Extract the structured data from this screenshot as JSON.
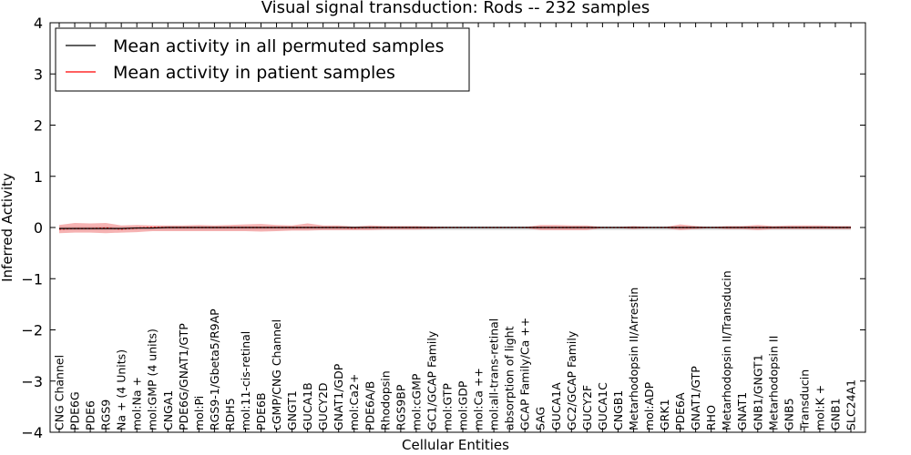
{
  "chart_data": {
    "type": "line",
    "title": "Visual signal transduction: Rods -- 232 samples",
    "xlabel": "Cellular Entities",
    "ylabel": "Inferred Activity",
    "ylim": [
      -4,
      4
    ],
    "yticks": [
      -4,
      -3,
      -2,
      -1,
      0,
      1,
      2,
      3,
      4
    ],
    "ytick_labels": [
      "−4",
      "−3",
      "−2",
      "−1",
      "0",
      "1",
      "2",
      "3",
      "4"
    ],
    "grid": false,
    "legend_position": "top-left",
    "categories": [
      "CNG Channel",
      "PDE6G",
      "PDE6",
      "RGS9",
      "Na + (4 Units)",
      "mol:Na +",
      "mol:GMP (4 units)",
      "CNGA1",
      "PDE6G/GNAT1/GTP",
      "mol:Pi",
      "RGS9-1/Gbeta5/R9AP",
      "RDH5",
      "mol:11-cis-retinal",
      "PDE6B",
      "cGMP/CNG Channel",
      "GNGT1",
      "GUCA1B",
      "GUCY2D",
      "GNAT1/GDP",
      "mol:Ca2+",
      "PDE6A/B",
      "Rhodopsin",
      "RGS9BP",
      "mol:cGMP",
      "GC1/GCAP Family",
      "mol:GTP",
      "mol:GDP",
      "mol:Ca ++",
      "mol:all-trans-retinal",
      "absorption of light",
      "GCAP Family/Ca ++",
      "SAG",
      "GUCA1A",
      "GC2/GCAP Family",
      "GUCY2F",
      "GUCA1C",
      "CNGB1",
      "Metarhodopsin II/Arrestin",
      "mol:ADP",
      "GRK1",
      "PDE6A",
      "GNAT1/GTP",
      "RHO",
      "Metarhodopsin II/Transducin",
      "GNAT1",
      "GNB1/GNGT1",
      "Metarhodopsin II",
      "GNB5",
      "Transducin",
      "mol:K +",
      "GNB1",
      "SLC24A1"
    ],
    "series": [
      {
        "name": "Mean activity in all permuted samples",
        "color": "#000000",
        "values": [
          -0.02,
          -0.02,
          -0.02,
          -0.02,
          -0.02,
          -0.01,
          -0.01,
          0,
          0,
          0,
          0,
          0,
          0,
          0,
          0,
          0,
          0,
          0,
          0,
          0,
          0,
          0,
          0,
          0,
          0,
          0,
          0,
          0,
          0,
          0,
          0,
          0,
          0,
          0,
          0,
          0,
          0,
          0,
          0,
          0,
          0,
          0,
          0,
          0,
          0,
          0,
          0,
          0,
          0,
          0,
          0,
          0
        ],
        "band_upper": [
          0.02,
          0.02,
          0.02,
          0.02,
          0.01,
          0.02,
          0.02,
          0.02,
          0.02,
          0.02,
          0.02,
          0.02,
          0.02,
          0.02,
          0.02,
          0.02,
          0.02,
          0.02,
          0.02,
          0.02,
          0.02,
          0.02,
          0.02,
          0.02,
          0.02,
          0.02,
          0.02,
          0.02,
          0.02,
          0.02,
          0.02,
          0.02,
          0.02,
          0.02,
          0.02,
          0.02,
          0.02,
          0.02,
          0.02,
          0.02,
          0.02,
          0.02,
          0.02,
          0.02,
          0.02,
          0.02,
          0.02,
          0.02,
          0.02,
          0.02,
          0.02,
          0.02
        ],
        "band_lower": [
          -0.06,
          -0.06,
          -0.06,
          -0.06,
          -0.05,
          -0.05,
          -0.05,
          -0.05,
          -0.05,
          -0.05,
          -0.05,
          -0.05,
          -0.05,
          -0.05,
          -0.05,
          -0.05,
          -0.05,
          -0.05,
          -0.05,
          -0.05,
          -0.05,
          -0.05,
          -0.05,
          -0.05,
          -0.05,
          -0.05,
          -0.05,
          -0.05,
          -0.05,
          -0.05,
          -0.05,
          -0.05,
          -0.05,
          -0.05,
          -0.05,
          -0.05,
          -0.05,
          -0.05,
          -0.05,
          -0.05,
          -0.05,
          -0.05,
          -0.05,
          -0.05,
          -0.05,
          -0.05,
          -0.05,
          -0.05,
          -0.05,
          -0.05,
          -0.05,
          -0.05
        ]
      },
      {
        "name": "Mean activity in patient samples",
        "color": "#ff0000",
        "band_color": "#f08080",
        "values": [
          -0.03,
          -0.02,
          -0.02,
          -0.01,
          -0.03,
          -0.01,
          0,
          0,
          0,
          0,
          0,
          0,
          0,
          0,
          0,
          0,
          0,
          0,
          0,
          -0.01,
          0,
          0,
          0,
          0,
          0,
          0,
          0,
          0,
          0,
          0,
          0,
          0,
          0,
          0,
          0,
          0,
          0,
          0,
          0,
          0,
          0,
          0,
          0,
          0,
          0,
          0,
          0,
          0,
          0,
          0,
          0,
          0
        ],
        "band_upper": [
          0.05,
          0.09,
          0.08,
          0.09,
          0.04,
          0.05,
          0.04,
          0.04,
          0.04,
          0.05,
          0.04,
          0.05,
          0.06,
          0.07,
          0.05,
          0.04,
          0.08,
          0.04,
          0.04,
          0.02,
          0.04,
          0.03,
          0.03,
          0.03,
          0.02,
          0.01,
          0.01,
          0.01,
          0.01,
          0.01,
          0.01,
          0.05,
          0.05,
          0.04,
          0.04,
          0.01,
          0.01,
          0.03,
          0.01,
          0.01,
          0.06,
          0.03,
          0.01,
          0.03,
          0.03,
          0.05,
          0.03,
          0.04,
          0.04,
          0.04,
          0.03,
          0.03
        ],
        "band_lower": [
          -0.11,
          -0.1,
          -0.1,
          -0.11,
          -0.1,
          -0.09,
          -0.07,
          -0.07,
          -0.07,
          -0.07,
          -0.07,
          -0.07,
          -0.07,
          -0.08,
          -0.07,
          -0.06,
          -0.06,
          -0.05,
          -0.05,
          -0.05,
          -0.05,
          -0.04,
          -0.04,
          -0.04,
          -0.03,
          -0.01,
          -0.01,
          -0.01,
          -0.01,
          -0.01,
          -0.01,
          -0.05,
          -0.05,
          -0.05,
          -0.05,
          -0.01,
          -0.01,
          -0.03,
          -0.01,
          -0.01,
          -0.05,
          -0.03,
          -0.01,
          -0.03,
          -0.03,
          -0.05,
          -0.03,
          -0.03,
          -0.03,
          -0.03,
          -0.03,
          -0.03
        ]
      }
    ]
  }
}
